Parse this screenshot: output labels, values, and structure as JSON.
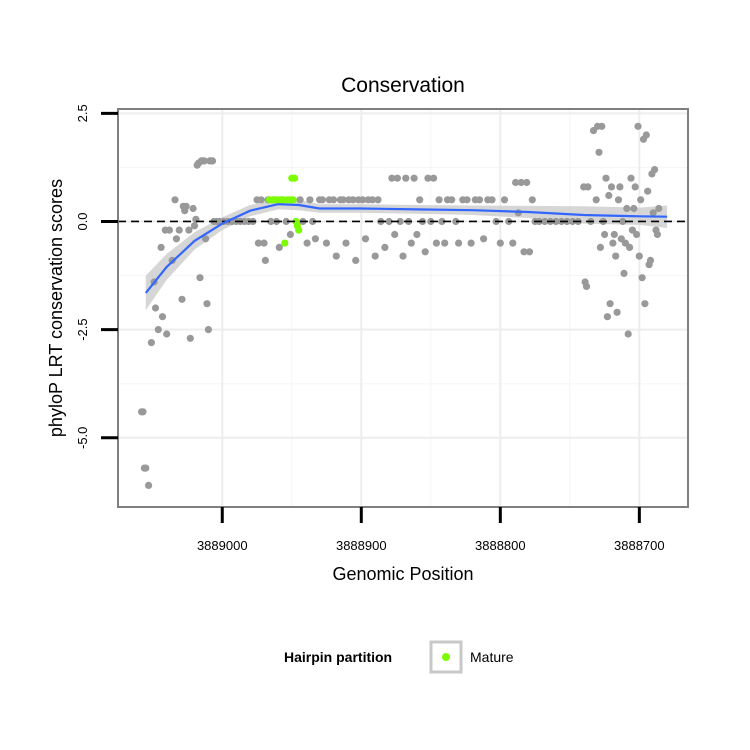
{
  "chart_data": {
    "type": "scatter",
    "title": "Conservation",
    "xlabel": "Genomic Position",
    "ylabel": "phyloP LRT conservation scores",
    "x_reversed": true,
    "xlim": [
      3889075,
      3888665
    ],
    "ylim": [
      -6.6,
      2.6
    ],
    "x_ticks": [
      3889000,
      3888900,
      3888800,
      3888700
    ],
    "x_tick_labels": [
      "3889000",
      "3888900",
      "3888800",
      "3888700"
    ],
    "y_ticks": [
      2.5,
      0.0,
      -2.5,
      -5.0
    ],
    "y_tick_labels": [
      "2.5",
      "0.0",
      "-2.5",
      "-5.0"
    ],
    "grid": true,
    "reference_line": {
      "y": 0,
      "style": "dashed",
      "color": "#000000"
    },
    "legend": {
      "title": "Hairpin partition",
      "entries": [
        "Mature"
      ],
      "position": "bottom"
    },
    "colors": {
      "other": "#999999",
      "mature": "#7CFC00",
      "smooth": "#3366FF",
      "ribbon": "#C8C8C8"
    },
    "series": [
      {
        "group": "other",
        "points": [
          [
            3889058,
            -4.4
          ],
          [
            3889057,
            -4.4
          ],
          [
            3889056,
            -5.7
          ],
          [
            3889055,
            -5.7
          ],
          [
            3889053,
            -6.1
          ],
          [
            3889051,
            -2.8
          ],
          [
            3889049,
            -1.4
          ],
          [
            3889048,
            -2.0
          ],
          [
            3889046,
            -2.5
          ],
          [
            3889044,
            -0.6
          ],
          [
            3889043,
            -2.2
          ],
          [
            3889041,
            -0.2
          ],
          [
            3889040,
            -2.6
          ],
          [
            3889038,
            -0.2
          ],
          [
            3889036,
            -0.9
          ],
          [
            3889034,
            0.5
          ],
          [
            3889033,
            -0.4
          ],
          [
            3889031,
            -0.2
          ],
          [
            3889029,
            -1.8
          ],
          [
            3889028,
            0.35
          ],
          [
            3889027,
            0.25
          ],
          [
            3889026,
            0.35
          ],
          [
            3889024,
            -0.2
          ],
          [
            3889023,
            -2.7
          ],
          [
            3889021,
            0.3
          ],
          [
            3889020,
            -0.1
          ],
          [
            3889019,
            0.05
          ],
          [
            3889018,
            1.3
          ],
          [
            3889017,
            1.35
          ],
          [
            3889016,
            -1.3
          ],
          [
            3889015,
            1.4
          ],
          [
            3889014,
            1.4
          ],
          [
            3889013,
            1.4
          ],
          [
            3889012,
            -0.4
          ],
          [
            3889011,
            -1.9
          ],
          [
            3889010,
            -2.5
          ],
          [
            3889009,
            1.4
          ],
          [
            3889008,
            1.4
          ],
          [
            3889007,
            1.4
          ],
          [
            3889006,
            0.0
          ],
          [
            3889004,
            0.0
          ],
          [
            3889002,
            0.0
          ],
          [
            3888999,
            0.0
          ],
          [
            3888996,
            0.0
          ],
          [
            3888993,
            0.0
          ],
          [
            3888990,
            0.0
          ],
          [
            3888987,
            0.0
          ],
          [
            3888984,
            0.0
          ],
          [
            3888981,
            0.0
          ],
          [
            3888978,
            0.0
          ],
          [
            3888975,
            0.5
          ],
          [
            3888974,
            -0.5
          ],
          [
            3888972,
            0.5
          ],
          [
            3888970,
            -0.5
          ],
          [
            3888969,
            -0.9
          ],
          [
            3888967,
            0.5
          ],
          [
            3888965,
            0.0
          ],
          [
            3888963,
            0.5
          ],
          [
            3888961,
            0.0
          ],
          [
            3888959,
            -0.6
          ],
          [
            3888957,
            0.5
          ],
          [
            3888954,
            0.0
          ],
          [
            3888951,
            -0.3
          ],
          [
            3888947,
            0.0
          ],
          [
            3888944,
            0.5
          ],
          [
            3888942,
            0.0
          ],
          [
            3888939,
            -0.5
          ],
          [
            3888937,
            0.5
          ],
          [
            3888935,
            0.0
          ],
          [
            3888933,
            -0.4
          ],
          [
            3888930,
            0.5
          ],
          [
            3888928,
            0.5
          ],
          [
            3888925,
            -0.5
          ],
          [
            3888923,
            0.5
          ],
          [
            3888920,
            0.5
          ],
          [
            3888918,
            -0.8
          ],
          [
            3888915,
            0.5
          ],
          [
            3888913,
            0.5
          ],
          [
            3888911,
            -0.5
          ],
          [
            3888909,
            0.5
          ],
          [
            3888906,
            0.5
          ],
          [
            3888904,
            -0.9
          ],
          [
            3888902,
            0.5
          ],
          [
            3888899,
            0.5
          ],
          [
            3888897,
            -0.4
          ],
          [
            3888895,
            0.5
          ],
          [
            3888892,
            0.5
          ],
          [
            3888890,
            -0.8
          ],
          [
            3888888,
            0.5
          ],
          [
            3888886,
            0.0
          ],
          [
            3888883,
            -0.6
          ],
          [
            3888880,
            0.0
          ],
          [
            3888878,
            1.0
          ],
          [
            3888876,
            -0.3
          ],
          [
            3888874,
            1.0
          ],
          [
            3888872,
            0.0
          ],
          [
            3888870,
            -0.8
          ],
          [
            3888868,
            1.0
          ],
          [
            3888866,
            0.0
          ],
          [
            3888864,
            -0.5
          ],
          [
            3888862,
            1.0
          ],
          [
            3888860,
            -0.3
          ],
          [
            3888858,
            0.5
          ],
          [
            3888856,
            0.0
          ],
          [
            3888854,
            -0.7
          ],
          [
            3888852,
            1.0
          ],
          [
            3888850,
            0.0
          ],
          [
            3888848,
            1.0
          ],
          [
            3888846,
            -0.5
          ],
          [
            3888844,
            0.5
          ],
          [
            3888842,
            0.0
          ],
          [
            3888840,
            -0.5
          ],
          [
            3888838,
            0.5
          ],
          [
            3888835,
            0.5
          ],
          [
            3888832,
            0.0
          ],
          [
            3888830,
            -0.5
          ],
          [
            3888827,
            0.5
          ],
          [
            3888824,
            0.5
          ],
          [
            3888821,
            -0.5
          ],
          [
            3888818,
            0.5
          ],
          [
            3888815,
            0.5
          ],
          [
            3888812,
            -0.4
          ],
          [
            3888809,
            0.5
          ],
          [
            3888806,
            0.5
          ],
          [
            3888803,
            0.0
          ],
          [
            3888800,
            -0.5
          ],
          [
            3888797,
            0.5
          ],
          [
            3888794,
            0.0
          ],
          [
            3888791,
            -0.5
          ],
          [
            3888789,
            0.9
          ],
          [
            3888787,
            0.2
          ],
          [
            3888785,
            0.9
          ],
          [
            3888783,
            -0.7
          ],
          [
            3888781,
            0.9
          ],
          [
            3888779,
            -0.7
          ],
          [
            3888777,
            0.5
          ],
          [
            3888775,
            0.0
          ],
          [
            3888772,
            0.0
          ],
          [
            3888768,
            0.0
          ],
          [
            3888764,
            0.0
          ],
          [
            3888760,
            0.0
          ],
          [
            3888756,
            0.0
          ],
          [
            3888752,
            0.0
          ],
          [
            3888748,
            0.0
          ],
          [
            3888744,
            0.0
          ],
          [
            3888740,
            0.8
          ],
          [
            3888739,
            -1.4
          ],
          [
            3888738,
            -1.5
          ],
          [
            3888737,
            0.8
          ],
          [
            3888735,
            0.0
          ],
          [
            3888733,
            2.1
          ],
          [
            3888731,
            0.5
          ],
          [
            3888730,
            2.2
          ],
          [
            3888729,
            1.6
          ],
          [
            3888728,
            -0.6
          ],
          [
            3888727,
            2.2
          ],
          [
            3888726,
            0.0
          ],
          [
            3888725,
            -0.3
          ],
          [
            3888724,
            1.0
          ],
          [
            3888723,
            -2.2
          ],
          [
            3888722,
            0.6
          ],
          [
            3888721,
            -1.9
          ],
          [
            3888720,
            0.8
          ],
          [
            3888719,
            -0.5
          ],
          [
            3888718,
            -0.3
          ],
          [
            3888717,
            -0.8
          ],
          [
            3888716,
            -2.1
          ],
          [
            3888715,
            0.5
          ],
          [
            3888714,
            0.8
          ],
          [
            3888713,
            -0.4
          ],
          [
            3888712,
            0.0
          ],
          [
            3888711,
            -1.2
          ],
          [
            3888710,
            -0.5
          ],
          [
            3888709,
            0.3
          ],
          [
            3888708,
            -2.6
          ],
          [
            3888707,
            -0.6
          ],
          [
            3888706,
            1.0
          ],
          [
            3888705,
            -0.2
          ],
          [
            3888704,
            0.3
          ],
          [
            3888703,
            0.8
          ],
          [
            3888702,
            -0.3
          ],
          [
            3888701,
            2.2
          ],
          [
            3888700,
            -0.8
          ],
          [
            3888699,
            0.5
          ],
          [
            3888698,
            -1.3
          ],
          [
            3888697,
            1.9
          ],
          [
            3888696,
            -1.9
          ],
          [
            3888695,
            2.0
          ],
          [
            3888694,
            0.7
          ],
          [
            3888693,
            -1.0
          ],
          [
            3888692,
            -0.9
          ],
          [
            3888691,
            1.1
          ],
          [
            3888690,
            0.2
          ],
          [
            3888689,
            1.2
          ],
          [
            3888688,
            -0.2
          ],
          [
            3888687,
            -0.3
          ],
          [
            3888686,
            0.3
          ]
        ]
      },
      {
        "group": "mature",
        "name": "Mature",
        "points": [
          [
            3888966,
            0.5
          ],
          [
            3888964,
            0.5
          ],
          [
            3888962,
            0.5
          ],
          [
            3888960,
            0.5
          ],
          [
            3888958,
            0.5
          ],
          [
            3888956,
            0.5
          ],
          [
            3888955,
            -0.5
          ],
          [
            3888953,
            0.5
          ],
          [
            3888951,
            0.5
          ],
          [
            3888950,
            1.0
          ],
          [
            3888949,
            0.5
          ],
          [
            3888948,
            1.0
          ],
          [
            3888947,
            0.0
          ],
          [
            3888946,
            -0.1
          ],
          [
            3888945,
            -0.2
          ]
        ]
      }
    ],
    "smooth": {
      "x": [
        3889055,
        3889040,
        3889020,
        3889000,
        3888980,
        3888960,
        3888945,
        3888930,
        3888900,
        3888860,
        3888820,
        3888780,
        3888740,
        3888700,
        3888680
      ],
      "y": [
        -1.65,
        -1.05,
        -0.45,
        -0.05,
        0.25,
        0.4,
        0.38,
        0.3,
        0.3,
        0.28,
        0.26,
        0.22,
        0.15,
        0.12,
        0.11
      ],
      "lo": [
        -2.05,
        -1.35,
        -0.65,
        -0.2,
        0.12,
        0.28,
        0.26,
        0.2,
        0.2,
        0.18,
        0.15,
        0.08,
        -0.05,
        -0.08,
        -0.15
      ],
      "hi": [
        -1.25,
        -0.75,
        -0.25,
        0.1,
        0.38,
        0.52,
        0.5,
        0.4,
        0.4,
        0.38,
        0.37,
        0.36,
        0.35,
        0.32,
        0.37
      ]
    }
  }
}
